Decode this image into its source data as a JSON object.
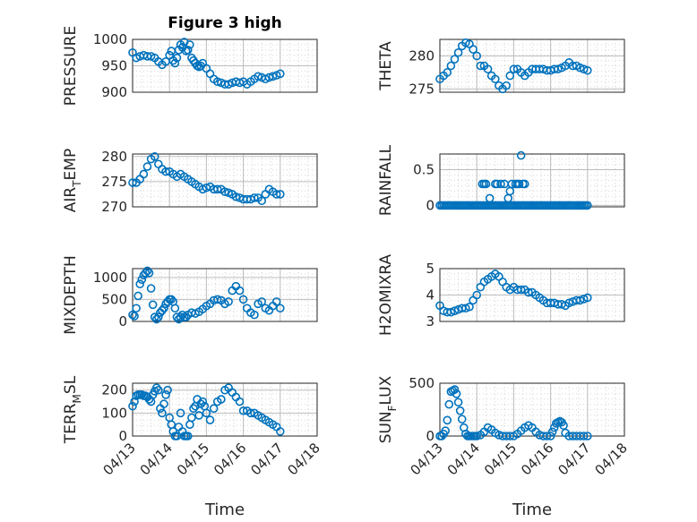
{
  "figure": {
    "title": "Figure 3 high",
    "marker_color": "#0072BD"
  },
  "chart_data": [
    {
      "type": "scatter",
      "id": "pressure",
      "ylabel": "PRESSURE",
      "yticks": [
        "900",
        "950",
        "1000"
      ],
      "ylim": [
        900,
        1000
      ],
      "x": [
        0,
        0.1,
        0.2,
        0.3,
        0.4,
        0.5,
        0.6,
        0.7,
        0.8,
        0.9,
        1,
        1.05,
        1.1,
        1.15,
        1.2,
        1.25,
        1.3,
        1.35,
        1.4,
        1.45,
        1.5,
        1.55,
        1.6,
        1.65,
        1.7,
        1.75,
        1.8,
        1.85,
        1.9,
        2,
        2.1,
        2.2,
        2.3,
        2.4,
        2.5,
        2.6,
        2.7,
        2.8,
        2.9,
        3,
        3.1,
        3.2,
        3.3,
        3.4,
        3.5,
        3.6,
        3.7,
        3.8,
        3.9,
        4
      ],
      "y": [
        975,
        965,
        968,
        970,
        968,
        968,
        965,
        958,
        952,
        958,
        970,
        978,
        960,
        955,
        965,
        980,
        990,
        985,
        995,
        978,
        980,
        990,
        965,
        960,
        955,
        950,
        948,
        950,
        955,
        945,
        935,
        925,
        920,
        918,
        915,
        915,
        918,
        920,
        918,
        920,
        915,
        920,
        925,
        930,
        928,
        925,
        928,
        930,
        932,
        935
      ]
    },
    {
      "type": "scatter",
      "id": "theta",
      "ylabel": "THETA",
      "yticks": [
        "275",
        "280"
      ],
      "ylim": [
        274.5,
        282.5
      ],
      "x": [
        0,
        0.1,
        0.2,
        0.3,
        0.4,
        0.5,
        0.6,
        0.7,
        0.8,
        0.9,
        1,
        1.1,
        1.2,
        1.3,
        1.4,
        1.5,
        1.6,
        1.7,
        1.8,
        1.9,
        2,
        2.1,
        2.2,
        2.3,
        2.4,
        2.5,
        2.6,
        2.7,
        2.8,
        2.9,
        3,
        3.1,
        3.2,
        3.3,
        3.4,
        3.5,
        3.6,
        3.7,
        3.8,
        3.9,
        4
      ],
      "y": [
        276.5,
        277,
        277.5,
        278.5,
        279.5,
        280.5,
        281.5,
        282,
        281.8,
        281,
        280,
        278.5,
        278.5,
        278,
        277,
        276.5,
        275.5,
        275,
        275.5,
        277,
        278,
        278,
        277.5,
        277,
        277.5,
        278,
        278,
        278,
        278,
        277.8,
        277.8,
        278,
        278,
        278.2,
        278.5,
        279,
        278.5,
        278.5,
        278.2,
        278,
        277.8
      ]
    },
    {
      "type": "scatter",
      "id": "air_temp",
      "ylabel": "AIR",
      "ylabel_sub": "T",
      "ylabel_rest": "EMP",
      "yticks": [
        "270",
        "275",
        "280"
      ],
      "ylim": [
        270,
        280.5
      ],
      "x": [
        0,
        0.1,
        0.2,
        0.3,
        0.4,
        0.5,
        0.6,
        0.7,
        0.8,
        0.9,
        1,
        1.1,
        1.2,
        1.3,
        1.4,
        1.5,
        1.6,
        1.7,
        1.8,
        1.9,
        2,
        2.1,
        2.2,
        2.3,
        2.4,
        2.5,
        2.6,
        2.7,
        2.8,
        2.9,
        3,
        3.1,
        3.2,
        3.3,
        3.4,
        3.5,
        3.6,
        3.7,
        3.8,
        3.9,
        4
      ],
      "y": [
        274.8,
        274.8,
        275.5,
        276.5,
        278,
        279.5,
        280,
        278.5,
        277.5,
        277,
        277,
        276.5,
        276,
        276.5,
        276,
        275.5,
        275,
        274.5,
        274,
        273.5,
        273.8,
        274,
        273.5,
        273.5,
        273.5,
        273,
        272.8,
        272.5,
        272,
        271.8,
        271.5,
        271.5,
        271.5,
        271.8,
        271.8,
        271.2,
        272.5,
        273.5,
        273,
        272.5,
        272.5
      ]
    },
    {
      "type": "scatter",
      "id": "rainfall",
      "ylabel": "RAINFALL",
      "yticks": [
        "0",
        "0.5"
      ],
      "ylim": [
        -0.02,
        0.72
      ],
      "x": [
        0,
        0.05,
        0.1,
        0.15,
        0.2,
        0.25,
        0.3,
        0.35,
        0.4,
        0.45,
        0.5,
        0.55,
        0.6,
        0.65,
        0.7,
        0.75,
        0.8,
        0.85,
        0.9,
        0.95,
        1,
        1.05,
        1.1,
        1.15,
        1.2,
        1.25,
        1.3,
        1.35,
        1.4,
        1.45,
        1.5,
        1.55,
        1.6,
        1.65,
        1.7,
        1.75,
        1.8,
        1.85,
        1.9,
        1.95,
        2,
        2.05,
        2.1,
        2.15,
        2.2,
        2.25,
        2.3,
        2.35,
        2.4,
        2.45,
        2.5,
        2.55,
        2.6,
        2.65,
        2.7,
        2.75,
        2.8,
        2.85,
        2.9,
        2.95,
        3,
        3.05,
        3.1,
        3.15,
        3.2,
        3.25,
        3.3,
        3.35,
        3.4,
        3.45,
        3.5,
        3.55,
        3.6,
        3.65,
        3.7,
        3.75,
        3.8,
        3.85,
        3.9,
        3.95,
        4,
        1.15,
        1.2,
        1.25,
        1.35,
        1.5,
        1.55,
        1.65,
        1.75,
        1.85,
        1.95,
        2.05,
        1.9,
        2.1,
        2.15,
        2.2,
        2.25,
        2.3
      ],
      "y": [
        0,
        0,
        0,
        0,
        0,
        0,
        0,
        0,
        0,
        0,
        0,
        0,
        0,
        0,
        0,
        0,
        0,
        0,
        0,
        0,
        0,
        0,
        0,
        0,
        0,
        0,
        0,
        0,
        0,
        0,
        0,
        0,
        0,
        0,
        0,
        0,
        0,
        0,
        0,
        0,
        0,
        0,
        0,
        0,
        0,
        0,
        0,
        0,
        0,
        0,
        0,
        0,
        0,
        0,
        0,
        0,
        0,
        0,
        0,
        0,
        0,
        0,
        0,
        0,
        0,
        0,
        0,
        0,
        0,
        0,
        0,
        0,
        0,
        0,
        0,
        0,
        0,
        0,
        0,
        0,
        0,
        0.3,
        0.3,
        0.3,
        0.1,
        0.3,
        0.3,
        0.3,
        0.3,
        0.1,
        0.3,
        0.3,
        0.2,
        0.3,
        0.3,
        0.7,
        0.3,
        0.3
      ]
    },
    {
      "type": "scatter",
      "id": "mixdepth",
      "ylabel": "MIXDEPTH",
      "yticks": [
        "0",
        "500",
        "1000"
      ],
      "ylim": [
        0,
        1200
      ],
      "x": [
        0,
        0.05,
        0.1,
        0.15,
        0.2,
        0.25,
        0.3,
        0.35,
        0.4,
        0.45,
        0.5,
        0.55,
        0.6,
        0.65,
        0.7,
        0.75,
        0.8,
        0.85,
        0.9,
        0.95,
        1,
        1.05,
        1.1,
        1.15,
        1.2,
        1.25,
        1.3,
        1.35,
        1.4,
        1.45,
        1.5,
        1.6,
        1.7,
        1.8,
        1.9,
        2,
        2.1,
        2.2,
        2.3,
        2.4,
        2.5,
        2.6,
        2.7,
        2.8,
        2.9,
        3,
        3.1,
        3.2,
        3.3,
        3.4,
        3.5,
        3.6,
        3.7,
        3.8,
        3.9,
        4
      ],
      "y": [
        150,
        120,
        300,
        580,
        850,
        950,
        1050,
        1100,
        1150,
        1100,
        750,
        380,
        100,
        50,
        100,
        200,
        250,
        300,
        400,
        450,
        500,
        500,
        450,
        300,
        100,
        50,
        100,
        150,
        100,
        100,
        150,
        200,
        180,
        220,
        280,
        350,
        400,
        480,
        500,
        480,
        400,
        450,
        700,
        800,
        700,
        500,
        300,
        200,
        150,
        400,
        450,
        300,
        250,
        350,
        450,
        300
      ]
    },
    {
      "type": "scatter",
      "id": "h2omixra",
      "ylabel": "H2OMIXRA",
      "yticks": [
        "3",
        "4",
        "5"
      ],
      "ylim": [
        3,
        5
      ],
      "x": [
        0,
        0.1,
        0.2,
        0.3,
        0.4,
        0.5,
        0.6,
        0.7,
        0.8,
        0.9,
        1,
        1.1,
        1.2,
        1.3,
        1.4,
        1.5,
        1.6,
        1.7,
        1.8,
        1.9,
        2,
        2.1,
        2.2,
        2.3,
        2.4,
        2.5,
        2.6,
        2.7,
        2.8,
        2.9,
        3,
        3.1,
        3.2,
        3.3,
        3.4,
        3.5,
        3.6,
        3.7,
        3.8,
        3.9,
        4
      ],
      "y": [
        3.6,
        3.4,
        3.35,
        3.35,
        3.4,
        3.45,
        3.5,
        3.5,
        3.55,
        3.8,
        4,
        4.3,
        4.5,
        4.6,
        4.7,
        4.8,
        4.7,
        4.5,
        4.3,
        4.2,
        4.3,
        4.2,
        4.2,
        4.2,
        4.1,
        4.1,
        4,
        3.9,
        3.8,
        3.7,
        3.7,
        3.7,
        3.65,
        3.65,
        3.6,
        3.7,
        3.75,
        3.8,
        3.8,
        3.85,
        3.9
      ]
    },
    {
      "type": "scatter",
      "id": "terr_msl",
      "ylabel": "TERR",
      "ylabel_sub": "M",
      "ylabel_rest": "SL",
      "yticks": [
        "0",
        "100",
        "200"
      ],
      "ylim": [
        0,
        230
      ],
      "x": [
        0,
        0.05,
        0.1,
        0.15,
        0.2,
        0.25,
        0.3,
        0.35,
        0.4,
        0.45,
        0.5,
        0.55,
        0.6,
        0.65,
        0.7,
        0.75,
        0.8,
        0.85,
        0.9,
        0.95,
        1,
        1.05,
        1.1,
        1.15,
        1.2,
        1.25,
        1.3,
        1.35,
        1.4,
        1.45,
        1.5,
        1.55,
        1.6,
        1.65,
        1.7,
        1.75,
        1.8,
        1.85,
        1.9,
        1.95,
        2,
        2.1,
        2.2,
        2.3,
        2.4,
        2.5,
        2.6,
        2.7,
        2.8,
        2.9,
        3,
        3.1,
        3.2,
        3.3,
        3.4,
        3.5,
        3.6,
        3.7,
        3.8,
        3.9,
        4
      ],
      "y": [
        130,
        150,
        175,
        180,
        180,
        180,
        175,
        175,
        170,
        160,
        150,
        180,
        195,
        210,
        200,
        120,
        100,
        140,
        180,
        200,
        80,
        50,
        20,
        0,
        0,
        40,
        100,
        20,
        0,
        0,
        0,
        50,
        80,
        120,
        130,
        160,
        90,
        140,
        150,
        130,
        100,
        70,
        120,
        150,
        160,
        200,
        210,
        190,
        170,
        150,
        110,
        110,
        100,
        100,
        90,
        80,
        70,
        60,
        50,
        40,
        20
      ]
    },
    {
      "type": "scatter",
      "id": "sun_flux",
      "ylabel": "SUN",
      "ylabel_sub": "F",
      "ylabel_rest": "LUX",
      "yticks": [
        "0",
        "500"
      ],
      "ylim": [
        0,
        500
      ],
      "x": [
        0,
        0.05,
        0.1,
        0.15,
        0.2,
        0.25,
        0.3,
        0.35,
        0.4,
        0.45,
        0.5,
        0.55,
        0.6,
        0.65,
        0.7,
        0.75,
        0.8,
        0.85,
        0.9,
        0.95,
        1,
        1.1,
        1.2,
        1.3,
        1.4,
        1.5,
        1.6,
        1.7,
        1.8,
        1.9,
        2,
        2.1,
        2.2,
        2.3,
        2.4,
        2.5,
        2.6,
        2.7,
        2.8,
        2.9,
        3,
        3.05,
        3.1,
        3.15,
        3.2,
        3.25,
        3.3,
        3.35,
        3.4,
        3.5,
        3.6,
        3.7,
        3.8,
        3.9,
        4
      ],
      "y": [
        0,
        0,
        20,
        50,
        150,
        300,
        420,
        430,
        440,
        400,
        320,
        240,
        160,
        80,
        20,
        0,
        0,
        0,
        0,
        0,
        0,
        10,
        40,
        80,
        60,
        30,
        10,
        0,
        0,
        0,
        0,
        20,
        50,
        80,
        100,
        80,
        40,
        10,
        0,
        0,
        0,
        40,
        80,
        120,
        130,
        140,
        130,
        100,
        30,
        0,
        0,
        0,
        0,
        0,
        0
      ]
    }
  ],
  "xaxis": {
    "ticklabels": [
      "04/13",
      "04/14",
      "04/15",
      "04/16",
      "04/17",
      "04/18"
    ],
    "range": [
      0,
      5
    ],
    "label": "Time"
  }
}
